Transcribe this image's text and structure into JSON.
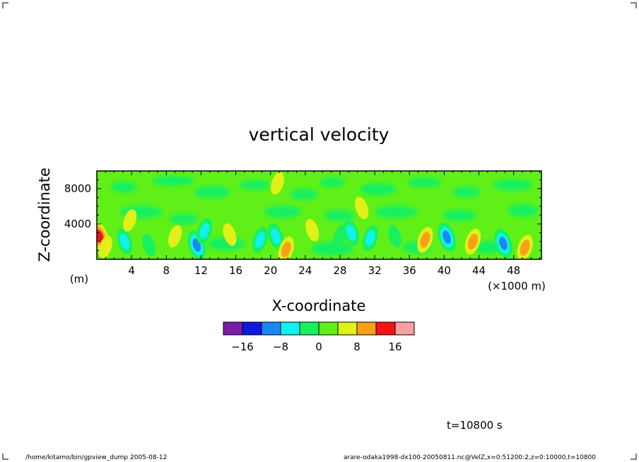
{
  "chart_data": {
    "type": "heatmap",
    "title": "vertical velocity",
    "xlabel": "X-coordinate",
    "ylabel": "Z-coordinate",
    "x_unit": "(×1000 m)",
    "y_unit": "(m)",
    "xlim": [
      0,
      51.2
    ],
    "ylim": [
      0,
      10000
    ],
    "x_ticks": [
      4,
      8,
      12,
      16,
      20,
      24,
      28,
      32,
      36,
      40,
      44,
      48
    ],
    "y_ticks": [
      4000,
      8000
    ],
    "colorbar": {
      "levels": [
        -20,
        -16,
        -12,
        -8,
        -4,
        0,
        4,
        8,
        12,
        16,
        20
      ],
      "tick_values": [
        -16,
        -8,
        0,
        8,
        16
      ],
      "tick_labels": [
        "−16",
        "−8",
        "0",
        "8",
        "16"
      ],
      "colors": [
        "#7d1aa7",
        "#0f18e0",
        "#1888f0",
        "#12f0f0",
        "#18f060",
        "#60f018",
        "#e0f018",
        "#f8a018",
        "#f01418",
        "#f8a0a0"
      ]
    },
    "features": [
      {
        "x": 0.3,
        "z": 2600,
        "value": 15
      },
      {
        "x": 1.0,
        "z": 1400,
        "value": 7
      },
      {
        "x": 3.2,
        "z": 2000,
        "value": -6
      },
      {
        "x": 3.8,
        "z": 4400,
        "value": 6
      },
      {
        "x": 6.0,
        "z": 1600,
        "value": -4
      },
      {
        "x": 9.0,
        "z": 2600,
        "value": 7
      },
      {
        "x": 11.5,
        "z": 1600,
        "value": -11
      },
      {
        "x": 12.4,
        "z": 3200,
        "value": -6
      },
      {
        "x": 15.3,
        "z": 2800,
        "value": 7
      },
      {
        "x": 18.8,
        "z": 2200,
        "value": -6
      },
      {
        "x": 20.6,
        "z": 2600,
        "value": -5
      },
      {
        "x": 21.8,
        "z": 1100,
        "value": 11
      },
      {
        "x": 24.8,
        "z": 3300,
        "value": 7
      },
      {
        "x": 28.0,
        "z": 2600,
        "value": -4
      },
      {
        "x": 29.3,
        "z": 3000,
        "value": -5
      },
      {
        "x": 31.5,
        "z": 2400,
        "value": -6
      },
      {
        "x": 34.3,
        "z": 2600,
        "value": -4
      },
      {
        "x": 37.8,
        "z": 2200,
        "value": 9
      },
      {
        "x": 40.3,
        "z": 2500,
        "value": -10
      },
      {
        "x": 43.3,
        "z": 2000,
        "value": 8
      },
      {
        "x": 46.8,
        "z": 1800,
        "value": -11
      },
      {
        "x": 49.3,
        "z": 1300,
        "value": 9
      },
      {
        "x": 30.5,
        "z": 5800,
        "value": 5
      },
      {
        "x": 20.8,
        "z": 8600,
        "value": 5
      }
    ],
    "annotation_time": "t=10800 s",
    "footer_left": "/home/kitamo/bin/gpview_dump   2005-08-12",
    "footer_right": "arare-odaka1998-dx100-20050811.nc@VelZ,x=0:51200:2,z=0:10000,t=10800"
  }
}
